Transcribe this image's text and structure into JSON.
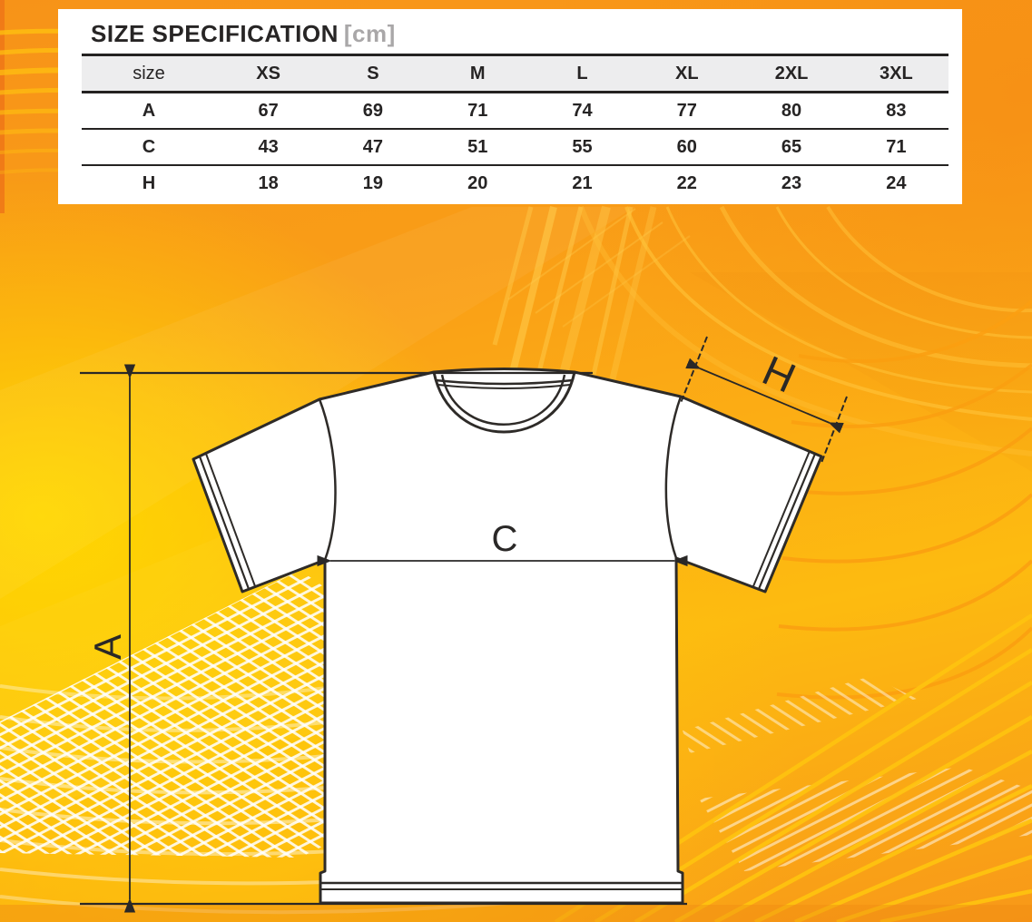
{
  "title": {
    "main": "SIZE SPECIFICATION",
    "unit": "[cm]"
  },
  "table": {
    "columns": [
      "size",
      "XS",
      "S",
      "M",
      "L",
      "XL",
      "2XL",
      "3XL"
    ],
    "rows": [
      {
        "label": "A",
        "values": [
          67,
          69,
          71,
          74,
          77,
          80,
          83
        ]
      },
      {
        "label": "C",
        "values": [
          43,
          47,
          51,
          55,
          60,
          65,
          71
        ]
      },
      {
        "label": "H",
        "values": [
          18,
          19,
          20,
          21,
          22,
          23,
          24
        ]
      }
    ]
  },
  "diagram": {
    "labels": {
      "height": "A",
      "chest": "C",
      "sleeve": "H"
    }
  },
  "colors": {
    "background_orange": "#f8941d",
    "background_yellow": "#ffd400",
    "accent_gold": "#ffc20e",
    "line_dark": "#2a2827",
    "table_header_bg": "#ededee",
    "unit_gray": "#a9a7a8"
  }
}
